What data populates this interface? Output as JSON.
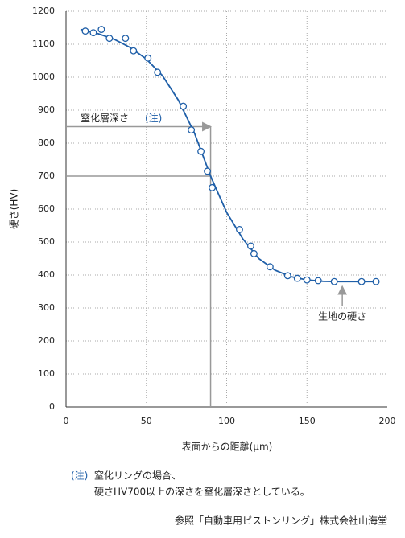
{
  "chart_data": {
    "type": "scatter",
    "x_label": "表面からの距離(μm)",
    "y_label": "硬さ(HV)",
    "color": "#1f5fa8",
    "x": [
      12,
      17,
      22,
      27,
      37,
      42,
      51,
      57,
      73,
      78,
      84,
      88,
      91,
      108,
      115,
      117,
      127,
      138,
      144,
      150,
      157,
      167,
      184,
      193
    ],
    "values": [
      1140,
      1135,
      1145,
      1118,
      1118,
      1080,
      1058,
      1015,
      912,
      840,
      775,
      715,
      665,
      538,
      488,
      465,
      425,
      398,
      390,
      385,
      383,
      380,
      380,
      380
    ],
    "curve": {
      "x": [
        9,
        20,
        30,
        40,
        50,
        60,
        70,
        80,
        90,
        100,
        110,
        120,
        130,
        140,
        150,
        160,
        170,
        180,
        195
      ],
      "values": [
        1145,
        1132,
        1115,
        1090,
        1055,
        1005,
        930,
        830,
        700,
        590,
        510,
        450,
        415,
        395,
        385,
        381,
        380,
        380,
        380
      ]
    },
    "xlim": [
      0,
      200
    ],
    "xticks": [
      0,
      50,
      100,
      150,
      200
    ],
    "ylim": [
      0,
      1200
    ],
    "yticks": [
      0,
      100,
      200,
      300,
      400,
      500,
      600,
      700,
      800,
      900,
      1000,
      1100,
      1200
    ],
    "grid": true,
    "depth_annotation": {
      "text": "窒化層深さ",
      "note": "(注)",
      "x": 90,
      "y": 850,
      "threshold": 700
    },
    "base_annotation": {
      "text": "生地の硬さ",
      "x": 172,
      "y": 380
    },
    "footnote": {
      "mark": "(注)",
      "lines": [
        "窒化リングの場合、",
        "硬さHV700以上の深さを窒化層深さとしている。"
      ]
    },
    "source": "参照「自動車用ピストンリング」株式会社山海堂"
  }
}
